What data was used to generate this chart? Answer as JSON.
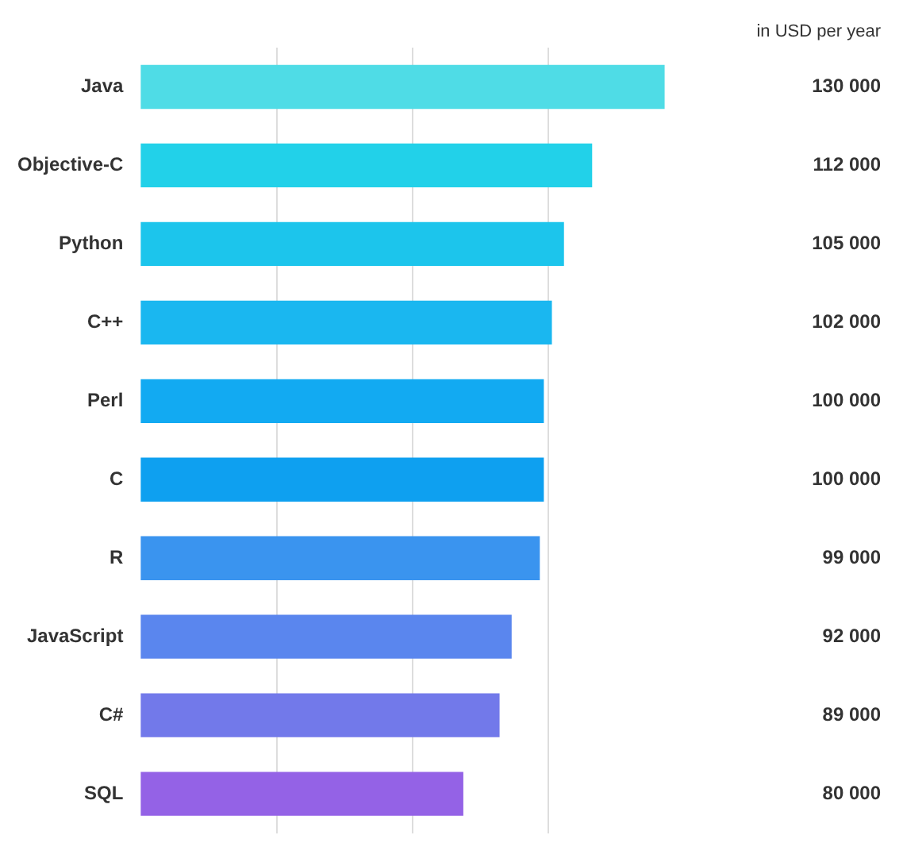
{
  "chart_data": {
    "type": "bar",
    "orientation": "horizontal",
    "categories": [
      "Java",
      "Objective-C",
      "Python",
      "C++",
      "Perl",
      "C",
      "R",
      "JavaScript",
      "C#",
      "SQL"
    ],
    "values": [
      130000,
      112000,
      105000,
      102000,
      100000,
      100000,
      99000,
      92000,
      89000,
      80000
    ],
    "colors": [
      "#4fdce6",
      "#22d1e9",
      "#1cc5ec",
      "#1ab7f0",
      "#12aaf2",
      "#0ea0f0",
      "#3a94ef",
      "#5a86ee",
      "#7279ea",
      "#9462e6"
    ],
    "value_labels": [
      "130 000",
      "112 000",
      "105 000",
      "102 000",
      "100 000",
      "100 000",
      "99 000",
      "92 000",
      "89 000",
      "80 000"
    ],
    "relative": false,
    "xlim": [
      0,
      131000
    ],
    "xticks": [
      {
        "value": 33750,
        "label": null
      },
      {
        "value": 67500,
        "label": null
      },
      {
        "value": 101250,
        "label": null
      }
    ],
    "grid": "x",
    "annotations": [
      "in USD per year"
    ]
  }
}
